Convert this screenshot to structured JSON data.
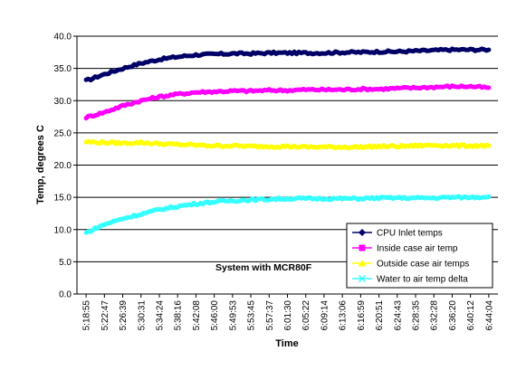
{
  "chart_data": {
    "type": "line",
    "title": "",
    "xlabel": "Time",
    "ylabel": "Temp, degrees C",
    "annotation": "System with MCR80F",
    "ylim": [
      0,
      40
    ],
    "yticks": [
      "0.0",
      "5.0",
      "10.0",
      "15.0",
      "20.0",
      "25.0",
      "30.0",
      "35.0",
      "40.0"
    ],
    "grid": "horizontal",
    "legend_position": "bottom-right",
    "categories": [
      "5:18:55",
      "5:22:47",
      "5:26:39",
      "5:30:31",
      "5:34:24",
      "5:38:16",
      "5:42:08",
      "5:46:00",
      "5:49:53",
      "5:53:45",
      "5:57:37",
      "6:01:30",
      "6:05:22",
      "6:09:14",
      "6:13:06",
      "6:16:59",
      "6:20:51",
      "6:24:43",
      "6:28:35",
      "6:32:28",
      "6:36:20",
      "6:40:12",
      "6:44:04"
    ],
    "series": [
      {
        "name": "CPU Inlet temps",
        "color": "#000066",
        "marker": "diamond",
        "values": [
          33.1,
          34.1,
          35.0,
          35.8,
          36.4,
          36.8,
          37.1,
          37.2,
          37.3,
          37.3,
          37.4,
          37.4,
          37.4,
          37.4,
          37.5,
          37.5,
          37.6,
          37.6,
          37.7,
          37.8,
          37.9,
          37.9,
          37.9
        ]
      },
      {
        "name": "Inside case air temp",
        "color": "#ff00ff",
        "marker": "square",
        "values": [
          27.4,
          28.2,
          29.2,
          30.0,
          30.6,
          31.0,
          31.3,
          31.4,
          31.5,
          31.5,
          31.6,
          31.6,
          31.7,
          31.7,
          31.7,
          31.8,
          31.8,
          31.9,
          32.0,
          32.1,
          32.2,
          32.2,
          32.0
        ]
      },
      {
        "name": "Outside case air temps",
        "color": "#ffff00",
        "marker": "triangle",
        "values": [
          23.6,
          23.5,
          23.4,
          23.5,
          23.3,
          23.2,
          23.1,
          23.0,
          23.0,
          22.9,
          22.9,
          22.9,
          22.8,
          22.8,
          22.8,
          22.8,
          22.9,
          22.9,
          23.0,
          23.1,
          23.0,
          23.0,
          23.0
        ]
      },
      {
        "name": "Water to air temp delta",
        "color": "#33ffff",
        "marker": "x",
        "values": [
          9.5,
          10.8,
          11.7,
          12.4,
          13.1,
          13.6,
          14.0,
          14.3,
          14.5,
          14.6,
          14.7,
          14.8,
          14.8,
          14.8,
          14.8,
          14.8,
          14.9,
          14.9,
          14.9,
          14.9,
          15.0,
          15.0,
          15.1
        ]
      }
    ]
  }
}
